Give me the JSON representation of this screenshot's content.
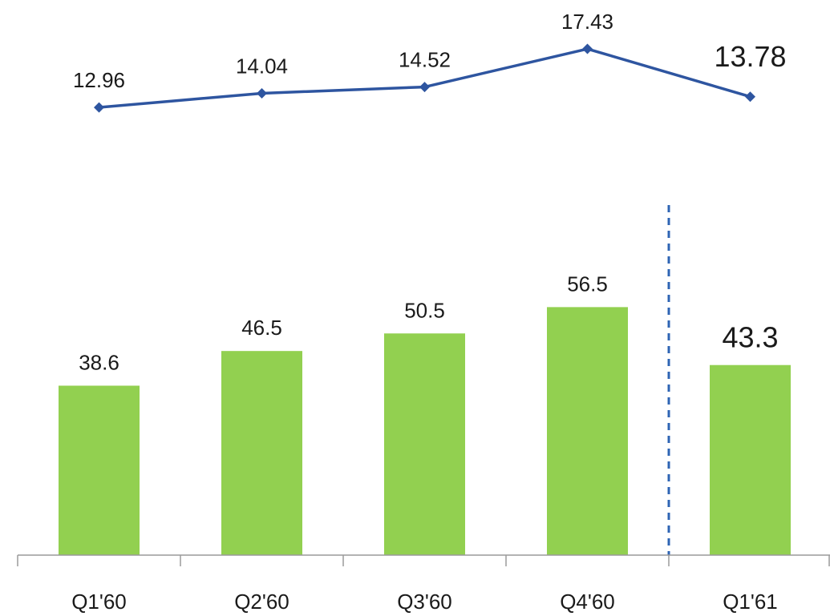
{
  "chart_data": {
    "type": "bar",
    "categories": [
      "Q1'60",
      "Q2'60",
      "Q3'60",
      "Q4'60",
      "Q1'61"
    ],
    "series": [
      {
        "type": "bar",
        "values": [
          38.6,
          46.5,
          50.5,
          56.5,
          43.3
        ],
        "color": "#92d050"
      },
      {
        "type": "line",
        "values": [
          12.96,
          14.04,
          14.52,
          17.43,
          13.78
        ],
        "color": "#2e55a0"
      }
    ],
    "bar_labels": [
      "38.6",
      "46.5",
      "50.5",
      "56.5",
      "43.3"
    ],
    "line_labels": [
      "12.96",
      "14.04",
      "14.52",
      "17.43",
      "13.78"
    ],
    "divider": {
      "between": [
        "Q4'60",
        "Q1'61"
      ],
      "style": "dashed",
      "color": "#2e64b4"
    },
    "highlight_category": "Q1'61",
    "grid": false,
    "legend": "none"
  }
}
